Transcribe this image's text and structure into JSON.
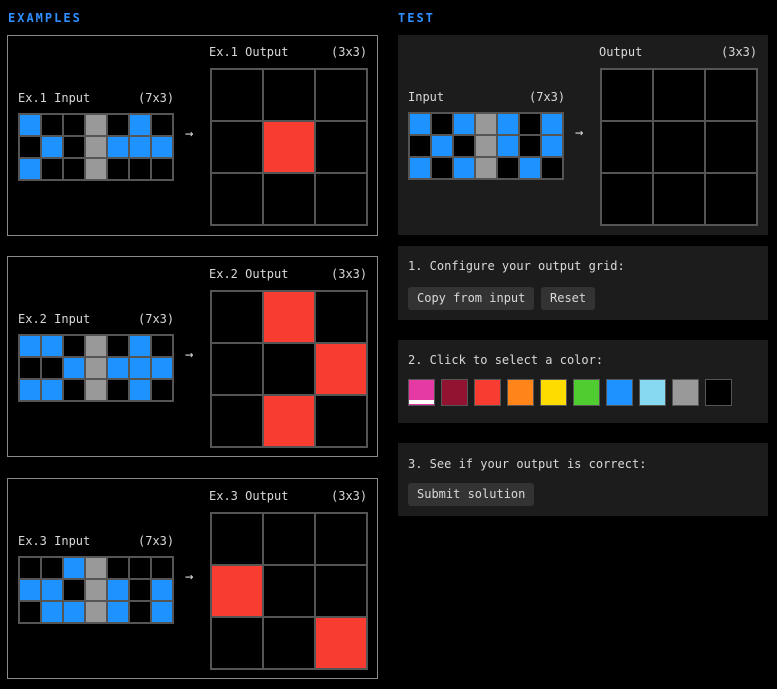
{
  "colors": {
    "0": "#000000",
    "1": "#1e93ff",
    "2": "#f93c31",
    "5": "#999999"
  },
  "headings": {
    "examples": "EXAMPLES",
    "test": "TEST"
  },
  "examples": [
    {
      "input_label": "Ex.1 Input",
      "input_dims": "(7x3)",
      "output_label": "Ex.1 Output",
      "output_dims": "(3x3)",
      "input": [
        [
          1,
          0,
          0,
          5,
          0,
          1,
          0
        ],
        [
          0,
          1,
          0,
          5,
          1,
          1,
          1
        ],
        [
          1,
          0,
          0,
          5,
          0,
          0,
          0
        ]
      ],
      "output": [
        [
          0,
          0,
          0
        ],
        [
          0,
          2,
          0
        ],
        [
          0,
          0,
          0
        ]
      ]
    },
    {
      "input_label": "Ex.2 Input",
      "input_dims": "(7x3)",
      "output_label": "Ex.2 Output",
      "output_dims": "(3x3)",
      "input": [
        [
          1,
          1,
          0,
          5,
          0,
          1,
          0
        ],
        [
          0,
          0,
          1,
          5,
          1,
          1,
          1
        ],
        [
          1,
          1,
          0,
          5,
          0,
          1,
          0
        ]
      ],
      "output": [
        [
          0,
          2,
          0
        ],
        [
          0,
          0,
          2
        ],
        [
          0,
          2,
          0
        ]
      ]
    },
    {
      "input_label": "Ex.3 Input",
      "input_dims": "(7x3)",
      "output_label": "Ex.3 Output",
      "output_dims": "(3x3)",
      "input": [
        [
          0,
          0,
          1,
          5,
          0,
          0,
          0
        ],
        [
          1,
          1,
          0,
          5,
          1,
          0,
          1
        ],
        [
          0,
          1,
          1,
          5,
          1,
          0,
          1
        ]
      ],
      "output": [
        [
          0,
          0,
          0
        ],
        [
          2,
          0,
          0
        ],
        [
          0,
          0,
          2
        ]
      ]
    }
  ],
  "test": {
    "input_label": "Input",
    "input_dims": "(7x3)",
    "output_label": "Output",
    "output_dims": "(3x3)",
    "input": [
      [
        1,
        0,
        1,
        5,
        1,
        0,
        1
      ],
      [
        0,
        1,
        0,
        5,
        1,
        0,
        1
      ],
      [
        1,
        0,
        1,
        5,
        0,
        1,
        0
      ]
    ],
    "output": [
      [
        0,
        0,
        0
      ],
      [
        0,
        0,
        0
      ],
      [
        0,
        0,
        0
      ]
    ]
  },
  "arrow": "→",
  "step1": {
    "title": "1. Configure your output grid:",
    "copy_label": "Copy from input",
    "reset_label": "Reset"
  },
  "step2": {
    "title": "2. Click to select a color:",
    "palette": [
      "#e53aa3",
      "#921231",
      "#f93c31",
      "#ff851b",
      "#ffdc00",
      "#4fcc30",
      "#1e93ff",
      "#87d8f1",
      "#999999",
      "#000000"
    ],
    "selected_index": 0
  },
  "step3": {
    "title": "3. See if your output is correct:",
    "submit_label": "Submit solution"
  }
}
